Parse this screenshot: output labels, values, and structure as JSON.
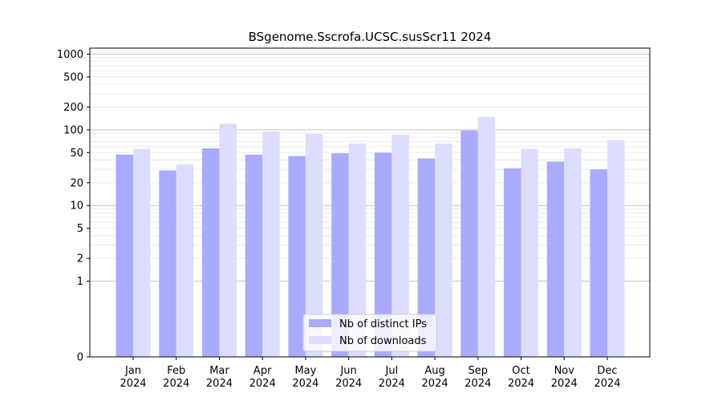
{
  "chart_data": {
    "type": "bar",
    "title": "BSgenome.Sscrofa.UCSC.susScr11 2024",
    "xlabel": "",
    "ylabel": "",
    "y_scale": "symlog",
    "ylim": [
      0,
      1200
    ],
    "y_ticks": [
      0,
      1,
      2,
      5,
      10,
      20,
      50,
      100,
      200,
      500,
      1000
    ],
    "y_tick_labels": [
      "0",
      "1",
      "2",
      "5",
      "10",
      "20",
      "50",
      "100",
      "200",
      "500",
      "1000"
    ],
    "grid": true,
    "legend_position": "lower center",
    "categories": [
      [
        "Jan",
        "2024"
      ],
      [
        "Feb",
        "2024"
      ],
      [
        "Mar",
        "2024"
      ],
      [
        "Apr",
        "2024"
      ],
      [
        "May",
        "2024"
      ],
      [
        "Jun",
        "2024"
      ],
      [
        "Jul",
        "2024"
      ],
      [
        "Aug",
        "2024"
      ],
      [
        "Sep",
        "2024"
      ],
      [
        "Oct",
        "2024"
      ],
      [
        "Nov",
        "2024"
      ],
      [
        "Dec",
        "2024"
      ]
    ],
    "series": [
      {
        "name": "Nb of distinct IPs",
        "color": "#aaaaff",
        "values": [
          47,
          29,
          57,
          47,
          45,
          49,
          50,
          42,
          98,
          31,
          38,
          30
        ]
      },
      {
        "name": "Nb of downloads",
        "color": "#ddddff",
        "values": [
          56,
          35,
          120,
          95,
          88,
          66,
          86,
          66,
          148,
          56,
          57,
          73
        ]
      }
    ]
  }
}
